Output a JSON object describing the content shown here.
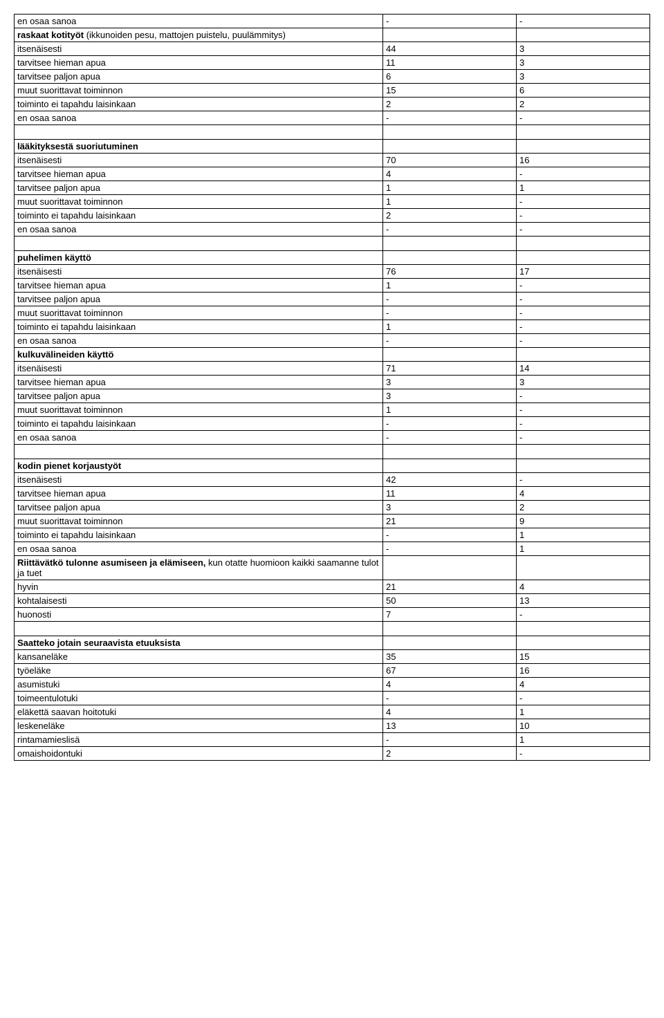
{
  "rows": [
    {
      "label": "en osaa sanoa",
      "v1": "-",
      "v2": "-",
      "bold": false
    },
    {
      "label": "raskaat kotityöt",
      "suffix": " (ikkunoiden pesu, mattojen puistelu, puulämmitys)",
      "v1": "",
      "v2": "",
      "bold": true
    },
    {
      "label": "itsenäisesti",
      "v1": "44",
      "v2": " 3",
      "bold": false
    },
    {
      "label": "tarvitsee hieman apua",
      "v1": "11",
      "v2": " 3",
      "bold": false
    },
    {
      "label": "tarvitsee paljon apua",
      "v1": " 6",
      "v2": " 3",
      "bold": false
    },
    {
      "label": "muut suorittavat toiminnon",
      "v1": "15",
      "v2": " 6",
      "bold": false
    },
    {
      "label": "toiminto ei tapahdu laisinkaan",
      "v1": " 2",
      "v2": " 2",
      "bold": false
    },
    {
      "label": "en osaa sanoa",
      "v1": "-",
      "v2": "-",
      "bold": false
    },
    {
      "spacer": true
    },
    {
      "label": "lääkityksestä suoriutuminen",
      "v1": "",
      "v2": "",
      "bold": true
    },
    {
      "label": "itsenäisesti",
      "v1": "70",
      "v2": "16",
      "bold": false
    },
    {
      "label": "tarvitsee hieman apua",
      "v1": " 4",
      "v2": "-",
      "bold": false
    },
    {
      "label": "tarvitsee paljon apua",
      "v1": " 1",
      "v2": " 1",
      "bold": false
    },
    {
      "label": "muut suorittavat toiminnon",
      "v1": " 1",
      "v2": "-",
      "bold": false
    },
    {
      "label": "toiminto ei tapahdu laisinkaan",
      "v1": " 2",
      "v2": "-",
      "bold": false
    },
    {
      "label": "en osaa sanoa",
      "v1": "-",
      "v2": "-",
      "bold": false
    },
    {
      "spacer": true
    },
    {
      "label": "puhelimen käyttö",
      "v1": "",
      "v2": "",
      "bold": true
    },
    {
      "label": "itsenäisesti",
      "v1": "76",
      "v2": "17",
      "bold": false
    },
    {
      "label": "tarvitsee hieman apua",
      "v1": " 1",
      "v2": "-",
      "bold": false
    },
    {
      "label": "tarvitsee paljon apua",
      "v1": "-",
      "v2": "-",
      "bold": false
    },
    {
      "label": "muut suorittavat toiminnon",
      "v1": "-",
      "v2": "-",
      "bold": false
    },
    {
      "label": "toiminto ei tapahdu laisinkaan",
      "v1": " 1",
      "v2": "-",
      "bold": false
    },
    {
      "label": "en osaa sanoa",
      "v1": "-",
      "v2": "-",
      "bold": false
    },
    {
      "label": "kulkuvälineiden käyttö",
      "v1": "",
      "v2": "",
      "bold": true
    },
    {
      "label": "itsenäisesti",
      "v1": "71",
      "v2": "14",
      "bold": false
    },
    {
      "label": "tarvitsee hieman apua",
      "v1": " 3",
      "v2": " 3",
      "bold": false
    },
    {
      "label": "tarvitsee paljon apua",
      "v1": " 3",
      "v2": "-",
      "bold": false
    },
    {
      "label": "muut suorittavat toiminnon",
      "v1": " 1",
      "v2": "-",
      "bold": false
    },
    {
      "label": "toiminto ei tapahdu laisinkaan",
      "v1": "-",
      "v2": "-",
      "bold": false
    },
    {
      "label": "en osaa sanoa",
      "v1": "-",
      "v2": "-",
      "bold": false
    },
    {
      "spacer": true
    },
    {
      "label": "kodin pienet korjaustyöt",
      "v1": "",
      "v2": "",
      "bold": true
    },
    {
      "label": "itsenäisesti",
      "v1": "42",
      "v2": "-",
      "bold": false
    },
    {
      "label": "tarvitsee hieman apua",
      "v1": "11",
      "v2": " 4",
      "bold": false
    },
    {
      "label": "tarvitsee paljon apua",
      "v1": " 3",
      "v2": " 2",
      "bold": false
    },
    {
      "label": "muut suorittavat toiminnon",
      "v1": "21",
      "v2": " 9",
      "bold": false
    },
    {
      "label": "toiminto ei tapahdu laisinkaan",
      "v1": "-",
      "v2": " 1",
      "bold": false
    },
    {
      "label": "en osaa sanoa",
      "v1": "-",
      "v2": " 1",
      "bold": false
    },
    {
      "label": "Riittävätkö tulonne asumiseen ja elämiseen,",
      "suffix": " kun otatte huomioon kaikki saamanne tulot ja tuet",
      "v1": "",
      "v2": "",
      "bold": true
    },
    {
      "label": "hyvin",
      "v1": "21",
      "v2": " 4",
      "bold": false
    },
    {
      "label": "kohtalaisesti",
      "v1": "50",
      "v2": "13",
      "bold": false
    },
    {
      "label": "huonosti",
      "v1": " 7",
      "v2": "-",
      "bold": false
    },
    {
      "spacer": true
    },
    {
      "label": "Saatteko jotain seuraavista etuuksista",
      "v1": "",
      "v2": "",
      "bold": true
    },
    {
      "label": "kansaneläke",
      "v1": "35",
      "v2": "15",
      "bold": false
    },
    {
      "label": "työeläke",
      "v1": "67",
      "v2": "16",
      "bold": false
    },
    {
      "label": "asumistuki",
      "v1": " 4",
      "v2": " 4",
      "bold": false
    },
    {
      "label": "toimeentulotuki",
      "v1": "-",
      "v2": "-",
      "bold": false
    },
    {
      "label": "eläkettä saavan hoitotuki",
      "v1": " 4",
      "v2": " 1",
      "bold": false
    },
    {
      "label": "leskeneläke",
      "v1": "13",
      "v2": "10",
      "bold": false
    },
    {
      "label": "rintamamieslisä",
      "v1": "-",
      "v2": " 1",
      "bold": false
    },
    {
      "label": "omaishoidontuki",
      "v1": " 2",
      "v2": "-",
      "bold": false
    }
  ]
}
